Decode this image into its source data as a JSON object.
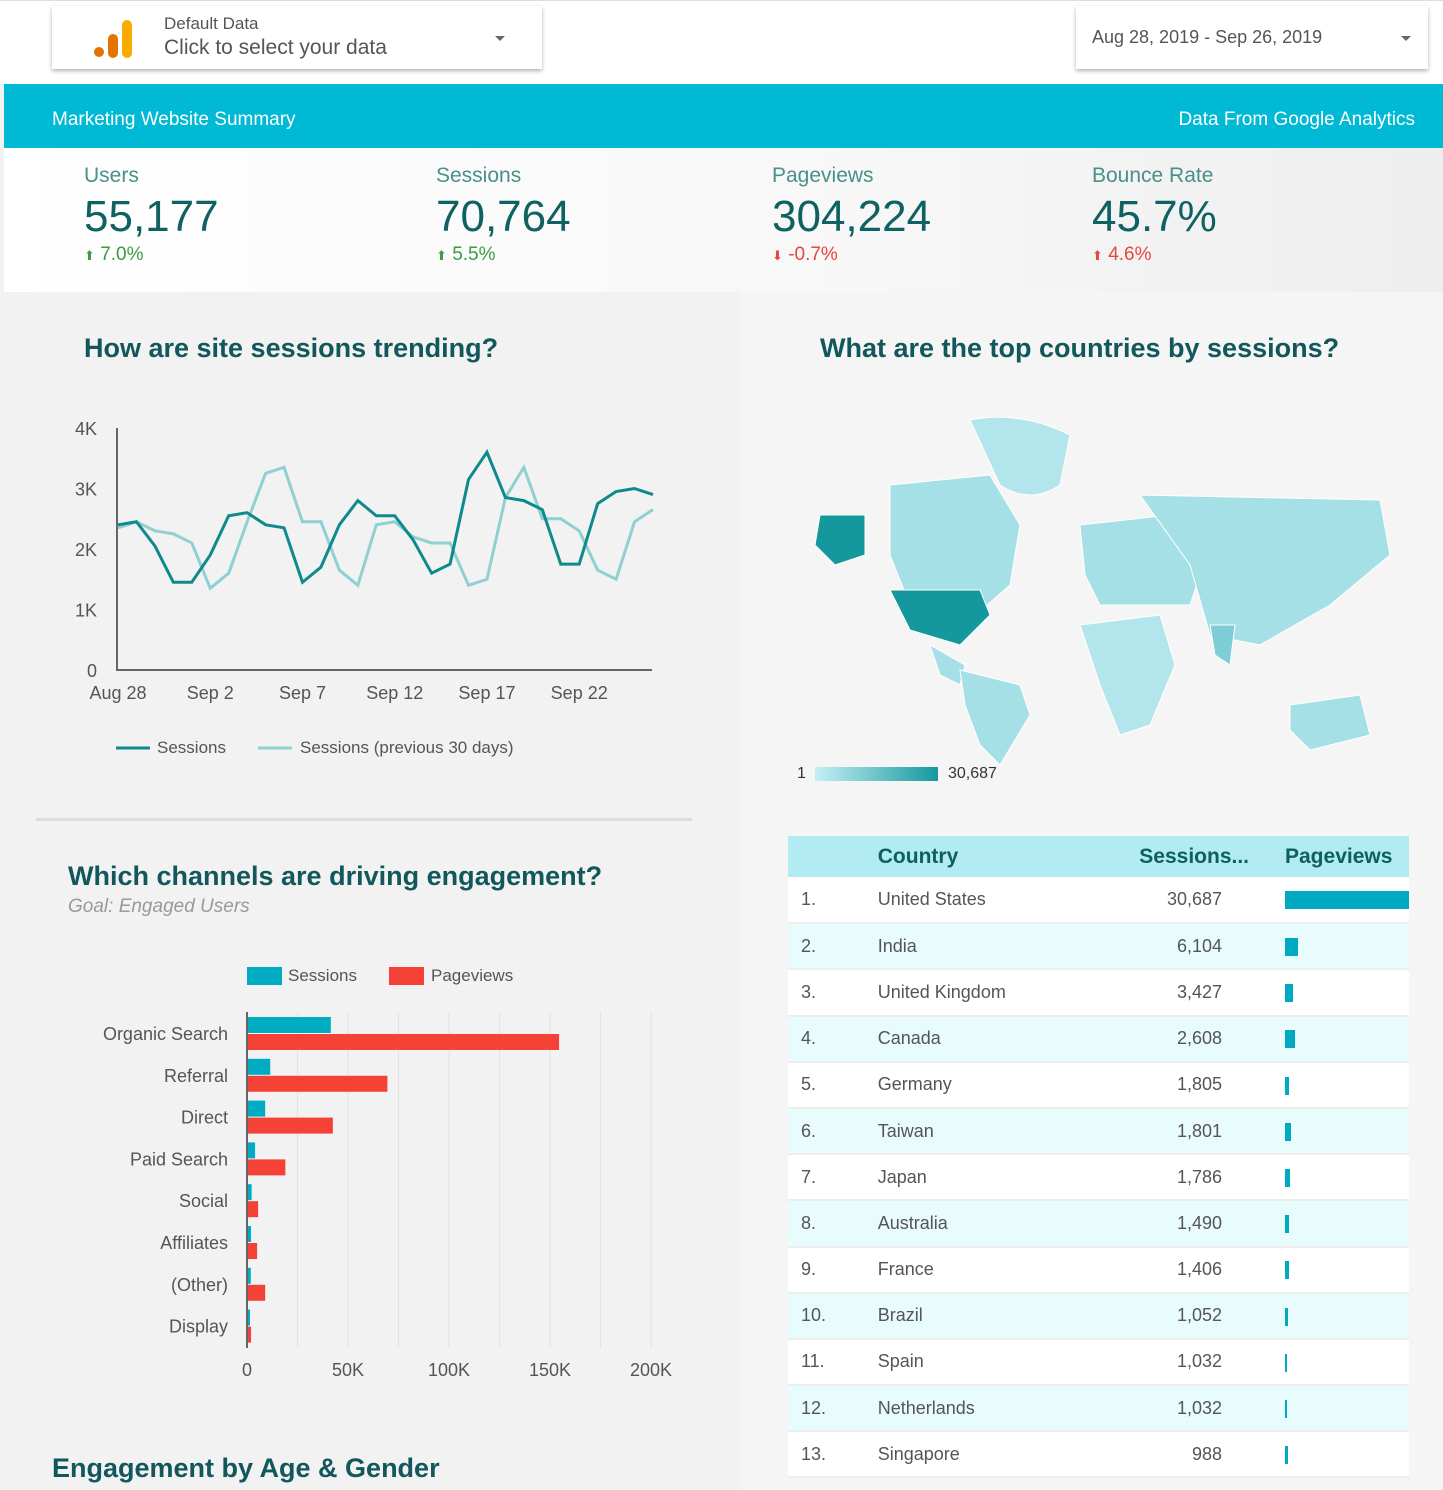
{
  "topbar": {
    "data_source": {
      "title": "Default Data",
      "subtitle": "Click to select your data",
      "icon": "google-analytics-logo-icon"
    },
    "date_range": {
      "label": "Aug 28, 2019 - Sep 26, 2019"
    }
  },
  "banner": {
    "title": "Marketing Website Summary",
    "source": "Data From Google Analytics",
    "color": "#00b9d4"
  },
  "kpis": [
    {
      "label": "Users",
      "value": "55,177",
      "change": "7.0%",
      "direction": "up"
    },
    {
      "label": "Sessions",
      "value": "70,764",
      "change": "5.5%",
      "direction": "up"
    },
    {
      "label": "Pageviews",
      "value": "304,224",
      "change": "-0.7%",
      "direction": "down"
    },
    {
      "label": "Bounce Rate",
      "value": "45.7%",
      "change": "4.6%",
      "direction": "up-bad"
    }
  ],
  "trend": {
    "title": "How are site sessions trending?",
    "legend": [
      "Sessions",
      "Sessions (previous 30 days)"
    ]
  },
  "channels": {
    "title": "Which channels are driving engagement?",
    "subtitle": "Goal: Engaged Users",
    "legend": [
      "Sessions",
      "Pageviews"
    ]
  },
  "age_gender": {
    "title": "Engagement by Age & Gender"
  },
  "countries": {
    "title": "What are the top countries by sessions?",
    "map_legend": {
      "min": "1",
      "max": "30,687"
    },
    "columns": [
      "",
      "Country",
      "Sessions...",
      "Pageviews"
    ],
    "rows": [
      {
        "rank": "1.",
        "country": "United States",
        "sessions": "30,687",
        "bar": 124
      },
      {
        "rank": "2.",
        "country": "India",
        "sessions": "6,104",
        "bar": 13
      },
      {
        "rank": "3.",
        "country": "United Kingdom",
        "sessions": "3,427",
        "bar": 8
      },
      {
        "rank": "4.",
        "country": "Canada",
        "sessions": "2,608",
        "bar": 10
      },
      {
        "rank": "5.",
        "country": "Germany",
        "sessions": "1,805",
        "bar": 4
      },
      {
        "rank": "6.",
        "country": "Taiwan",
        "sessions": "1,801",
        "bar": 6
      },
      {
        "rank": "7.",
        "country": "Japan",
        "sessions": "1,786",
        "bar": 5
      },
      {
        "rank": "8.",
        "country": "Australia",
        "sessions": "1,490",
        "bar": 4
      },
      {
        "rank": "9.",
        "country": "France",
        "sessions": "1,406",
        "bar": 4
      },
      {
        "rank": "10.",
        "country": "Brazil",
        "sessions": "1,052",
        "bar": 3
      },
      {
        "rank": "11.",
        "country": "Spain",
        "sessions": "1,032",
        "bar": 2
      },
      {
        "rank": "12.",
        "country": "Netherlands",
        "sessions": "1,032",
        "bar": 2
      },
      {
        "rank": "13.",
        "country": "Singapore",
        "sessions": "988",
        "bar": 3
      }
    ]
  },
  "chart_data": [
    {
      "type": "line",
      "title": "How are site sessions trending?",
      "x": [
        "Aug 28",
        "Aug 29",
        "Aug 30",
        "Aug 31",
        "Sep 1",
        "Sep 2",
        "Sep 3",
        "Sep 4",
        "Sep 5",
        "Sep 6",
        "Sep 7",
        "Sep 8",
        "Sep 9",
        "Sep 10",
        "Sep 11",
        "Sep 12",
        "Sep 13",
        "Sep 14",
        "Sep 15",
        "Sep 16",
        "Sep 17",
        "Sep 18",
        "Sep 19",
        "Sep 20",
        "Sep 21",
        "Sep 22",
        "Sep 23",
        "Sep 24",
        "Sep 25",
        "Sep 26"
      ],
      "xticks": [
        "Aug 28",
        "Sep 2",
        "Sep 7",
        "Sep 12",
        "Sep 17",
        "Sep 22"
      ],
      "yticks": [
        "0",
        "1K",
        "2K",
        "3K",
        "4K"
      ],
      "ylim": [
        0,
        4000
      ],
      "series": [
        {
          "name": "Sessions",
          "color": "#0f8a8c",
          "values": [
            2400,
            2450,
            2050,
            1450,
            1450,
            1900,
            2550,
            2600,
            2400,
            2350,
            1450,
            1700,
            2400,
            2800,
            2550,
            2550,
            2150,
            1600,
            1750,
            3150,
            3600,
            2850,
            2800,
            2650,
            1750,
            1750,
            2750,
            2950,
            3000,
            2900
          ]
        },
        {
          "name": "Sessions (previous 30 days)",
          "color": "#8fd0d2",
          "values": [
            2350,
            2450,
            2300,
            2250,
            2100,
            1350,
            1600,
            2450,
            3250,
            3350,
            2450,
            2450,
            1650,
            1400,
            2400,
            2450,
            2200,
            2100,
            2100,
            1400,
            1500,
            2850,
            3350,
            2500,
            2500,
            2300,
            1650,
            1500,
            2450,
            2650
          ]
        }
      ]
    },
    {
      "type": "bar",
      "title": "Which channels are driving engagement?",
      "orientation": "horizontal",
      "categories": [
        "Organic Search",
        "Referral",
        "Direct",
        "Paid Search",
        "Social",
        "Affiliates",
        "(Other)",
        "Display"
      ],
      "xticks": [
        "0",
        "50K",
        "100K",
        "150K",
        "200K"
      ],
      "xlim": [
        0,
        200000
      ],
      "series": [
        {
          "name": "Sessions",
          "color": "#00acc1",
          "values": [
            41000,
            11000,
            8500,
            3500,
            1800,
            1500,
            1400,
            300
          ]
        },
        {
          "name": "Pageviews",
          "color": "#f44336",
          "values": [
            154000,
            69000,
            42000,
            18500,
            5000,
            4500,
            8500,
            1500
          ]
        }
      ]
    }
  ]
}
